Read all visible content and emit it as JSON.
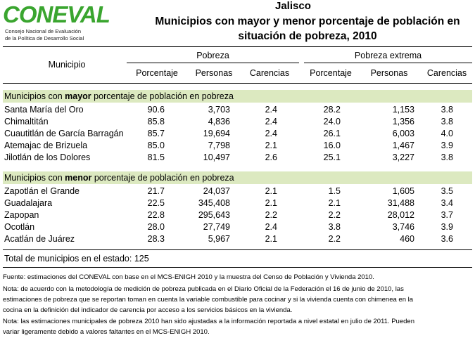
{
  "logo": {
    "wordmark": "CONEVAL",
    "line1": "Consejo Nacional de Evaluación",
    "line2": "de la Política de Desarrollo Social"
  },
  "title": {
    "state": "Jalisco",
    "line1": "Municipios con mayor y menor porcentaje de población en",
    "line2": "situación de pobreza, 2010"
  },
  "headers": {
    "municipio": "Municipio",
    "group1": "Pobreza",
    "group2": "Pobreza extrema",
    "cols": [
      "Porcentaje",
      "Personas",
      "Carencias",
      "Porcentaje",
      "Personas",
      "Carencias"
    ]
  },
  "section_mayor": {
    "prefix": "Municipios con ",
    "emph": "mayor",
    "suffix": " porcentaje de población en pobreza",
    "rows": [
      {
        "name": "Santa María del Oro",
        "v": [
          "90.6",
          "3,703",
          "2.4",
          "28.2",
          "1,153",
          "3.8"
        ]
      },
      {
        "name": "Chimaltitán",
        "v": [
          "85.8",
          "4,836",
          "2.4",
          "24.0",
          "1,356",
          "3.8"
        ]
      },
      {
        "name": "Cuautitlán de García Barragán",
        "v": [
          "85.7",
          "19,694",
          "2.4",
          "26.1",
          "6,003",
          "4.0"
        ]
      },
      {
        "name": "Atemajac de Brizuela",
        "v": [
          "85.0",
          "7,798",
          "2.1",
          "16.0",
          "1,467",
          "3.9"
        ]
      },
      {
        "name": "Jilotlán de los Dolores",
        "v": [
          "81.5",
          "10,497",
          "2.6",
          "25.1",
          "3,227",
          "3.8"
        ]
      }
    ]
  },
  "section_menor": {
    "prefix": "Municipios con ",
    "emph": "menor",
    "suffix": " porcentaje de población en pobreza",
    "rows": [
      {
        "name": "Zapotlán el Grande",
        "v": [
          "21.7",
          "24,037",
          "2.1",
          "1.5",
          "1,605",
          "3.5"
        ]
      },
      {
        "name": "Guadalajara",
        "v": [
          "22.5",
          "345,408",
          "2.1",
          "2.1",
          "31,488",
          "3.4"
        ]
      },
      {
        "name": "Zapopan",
        "v": [
          "22.8",
          "295,643",
          "2.2",
          "2.2",
          "28,012",
          "3.7"
        ]
      },
      {
        "name": "Ocotlán",
        "v": [
          "28.0",
          "27,749",
          "2.4",
          "3.8",
          "3,746",
          "3.9"
        ]
      },
      {
        "name": "Acatlán de Juárez",
        "v": [
          "28.3",
          "5,967",
          "2.1",
          "2.2",
          "460",
          "3.6"
        ]
      }
    ]
  },
  "total": "Total de municipios en el estado:  125",
  "notes": [
    "Fuente: estimaciones del CONEVAL con base en el MCS-ENIGH 2010 y la muestra del Censo de Población y Vivienda 2010.",
    "Nota: de acuerdo con la metodología de medición de pobreza publicada en el Diario Oficial de la Federación el 16 de junio de 2010, las",
    "estimaciones de pobreza que se reportan toman en cuenta la variable combustible para cocinar y si la vivienda cuenta con chimenea en la",
    "cocina en la definición del indicador de carencia por acceso a los servicios básicos en la vivienda.",
    "Nota: las estimaciones municipales de pobreza 2010 han sido ajustadas a la información reportada a nivel estatal en julio de 2011. Pueden",
    "variar ligeramente debido a valores faltantes en el MCS-ENIGH 2010."
  ]
}
